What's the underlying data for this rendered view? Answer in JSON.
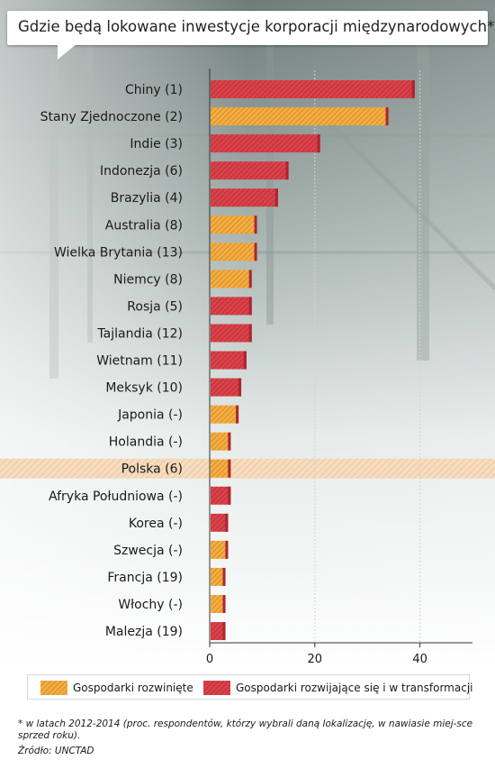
{
  "title": "Gdzie będą lokowane inwestycje korporacji międzynarodowych*",
  "legend": {
    "developed": "Gospodarki rozwinięte",
    "developing": "Gospodarki rozwijające się i w transformacji"
  },
  "footnote": "* w latach 2012-2014 (proc. respondentów, którzy wybrali daną lokalizację, w nawiasie miej-sce sprzed roku).",
  "source": "Źródło: UNCTAD",
  "colors": {
    "developed": "#f0b040",
    "developing": "#d9424a",
    "highlight_row": "#f6dcc0"
  },
  "chart_data": {
    "type": "bar",
    "orientation": "horizontal",
    "title": "Gdzie będą lokowane inwestycje korporacji międzynarodowych*",
    "xlabel": "",
    "ylabel": "",
    "xlim": [
      0,
      50
    ],
    "xticks": [
      0,
      20,
      40
    ],
    "grid": true,
    "legend_position": "bottom",
    "highlight": "Polska (6)",
    "categories": [
      "Chiny (1)",
      "Stany Zjednoczone (2)",
      "Indie (3)",
      "Indonezja (6)",
      "Brazylia (4)",
      "Australia (8)",
      "Wielka Brytania (13)",
      "Niemcy (8)",
      "Rosja (5)",
      "Tajlandia (12)",
      "Wietnam (11)",
      "Meksyk (10)",
      "Japonia  (-)",
      "Holandia (-)",
      "Polska (6)",
      "Afryka Południowa (-)",
      "Korea (-)",
      "Szwecja (-)",
      "Francja (19)",
      "Włochy (-)",
      "Malezja (19)"
    ],
    "values": [
      39,
      34,
      21,
      15,
      13,
      9,
      9,
      8,
      8,
      8,
      7,
      6,
      5.5,
      4,
      4,
      4,
      3.5,
      3.5,
      3,
      3,
      3
    ],
    "groups": [
      "developing",
      "developed",
      "developing",
      "developing",
      "developing",
      "developed",
      "developed",
      "developed",
      "developing",
      "developing",
      "developing",
      "developing",
      "developed",
      "developed",
      "developed",
      "developing",
      "developing",
      "developed",
      "developed",
      "developed",
      "developing"
    ]
  }
}
